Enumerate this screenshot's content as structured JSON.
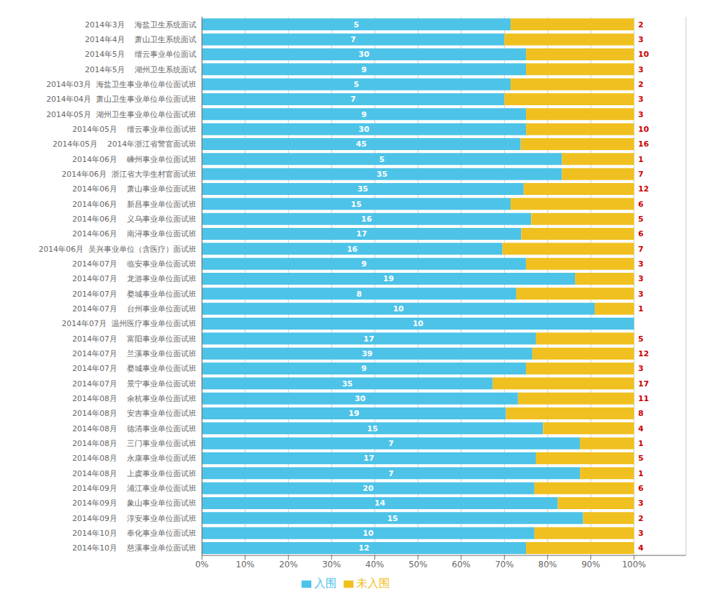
{
  "chart_data": {
    "type": "bar",
    "orientation": "horizontal",
    "stacked": true,
    "categories": [
      "2014年3月    海盐卫生系统面试",
      "2014年4月    萧山卫生系统面试",
      "2014年5月    缙云事业单位面试",
      "2014年5月    湖州卫生系统面试",
      "2014年03月  海盐卫生事业单位单位面试班",
      "2014年04月  萧山卫生事业单位单位面试班",
      "2014年05月  湖州卫生事业单位单位面试班",
      "2014年05月    缙云事业单位面试班",
      "2014年05月    2014年浙江省警官面试班",
      "2014年06月    嵊州事业单位面试班",
      "2014年06月  浙江省大学生村官面试班",
      "2014年06月    萧山事业单位面试班",
      "2014年06月    新昌事业单位面试班",
      "2014年06月    义乌事业单位面试班",
      "2014年06月    南浔事业单位面试班",
      "2014年06月  吴兴事业单位（含医疗）面试班",
      "2014年07月    临安事业单位面试班",
      "2014年07月    龙游事业单位面试班",
      "2014年07月    婺城事业单位面试班",
      "2014年07月    台州事业单位面试班",
      "2014年07月  温州医疗事业单位面试班",
      "2014年07月    富阳事业单位面试班",
      "2014年07月    兰溪事业单位面试班",
      "2014年07月    婺城事业单位面试班",
      "2014年07月    景宁事业单位面试班",
      "2014年08月    余杭事业单位面试班",
      "2014年08月    安吉事业单位面试班",
      "2014年08月    德清事业单位面试班",
      "2014年08月    三门事业单位面试班",
      "2014年08月    永康事业单位面试班",
      "2014年08月    上虞事业单位面试班",
      "2014年09月    浦江事业单位面试班",
      "2014年09月    象山事业单位面试班",
      "2014年09月    淳安事业单位面试班",
      "2014年10月    奉化事业单位面试班",
      "2014年10月    慈溪事业单位面试班"
    ],
    "series": [
      {
        "name": "入围",
        "color": "#4DC3E8",
        "values": [
          71.428571,
          70,
          75,
          75,
          71.428571,
          70,
          75,
          75,
          73.770492,
          83.333333,
          83.333333,
          74.468085,
          71.428571,
          76.190476,
          73.913043,
          69.565217,
          75,
          86.363636,
          72.727273,
          90.909091,
          100,
          77.272727,
          76.470588,
          75,
          67.307692,
          73.170732,
          70.37037,
          78.947368,
          87.5,
          77.272727,
          87.5,
          76.923077,
          82.352941,
          88.235294,
          76.923077,
          75
        ],
        "counts": [
          5,
          7,
          30,
          9,
          5,
          7,
          9,
          30,
          45,
          5,
          35,
          35,
          15,
          16,
          17,
          16,
          9,
          19,
          8,
          10,
          10,
          17,
          39,
          9,
          35,
          30,
          19,
          15,
          7,
          17,
          7,
          20,
          14,
          15,
          10,
          12
        ]
      },
      {
        "name": "未入围",
        "color": "#F0C020",
        "values": [
          28.571429,
          30,
          25,
          25,
          28.571429,
          30,
          25,
          25,
          26.229508,
          16.666667,
          16.666667,
          25.531915,
          28.571429,
          23.809524,
          26.086957,
          30.434783,
          25,
          13.636364,
          27.272727,
          9.090909,
          0,
          22.727273,
          23.529412,
          25,
          32.692308,
          26.829268,
          29.62963,
          21.052632,
          12.5,
          22.727273,
          12.5,
          23.076923,
          17.647059,
          11.764706,
          23.076923,
          25
        ],
        "counts": [
          2,
          3,
          10,
          3,
          2,
          3,
          3,
          10,
          16,
          1,
          7,
          12,
          6,
          5,
          6,
          7,
          3,
          3,
          3,
          1,
          null,
          5,
          12,
          3,
          17,
          11,
          8,
          4,
          1,
          5,
          1,
          6,
          3,
          2,
          3,
          4
        ]
      }
    ],
    "xlim": [
      0,
      112
    ],
    "xticks": [
      {
        "value": 0,
        "label": "0%"
      },
      {
        "value": 10,
        "label": "10%"
      },
      {
        "value": 20,
        "label": "20%"
      },
      {
        "value": 30,
        "label": "30%"
      },
      {
        "value": 40,
        "label": "40%"
      },
      {
        "value": 50,
        "label": "50%"
      },
      {
        "value": 60,
        "label": "60%"
      },
      {
        "value": 70,
        "label": "70%"
      },
      {
        "value": 80,
        "label": "80%"
      },
      {
        "value": 90,
        "label": "90%"
      },
      {
        "value": 100,
        "label": "100%"
      }
    ],
    "grid": true,
    "legend": "bottom"
  }
}
